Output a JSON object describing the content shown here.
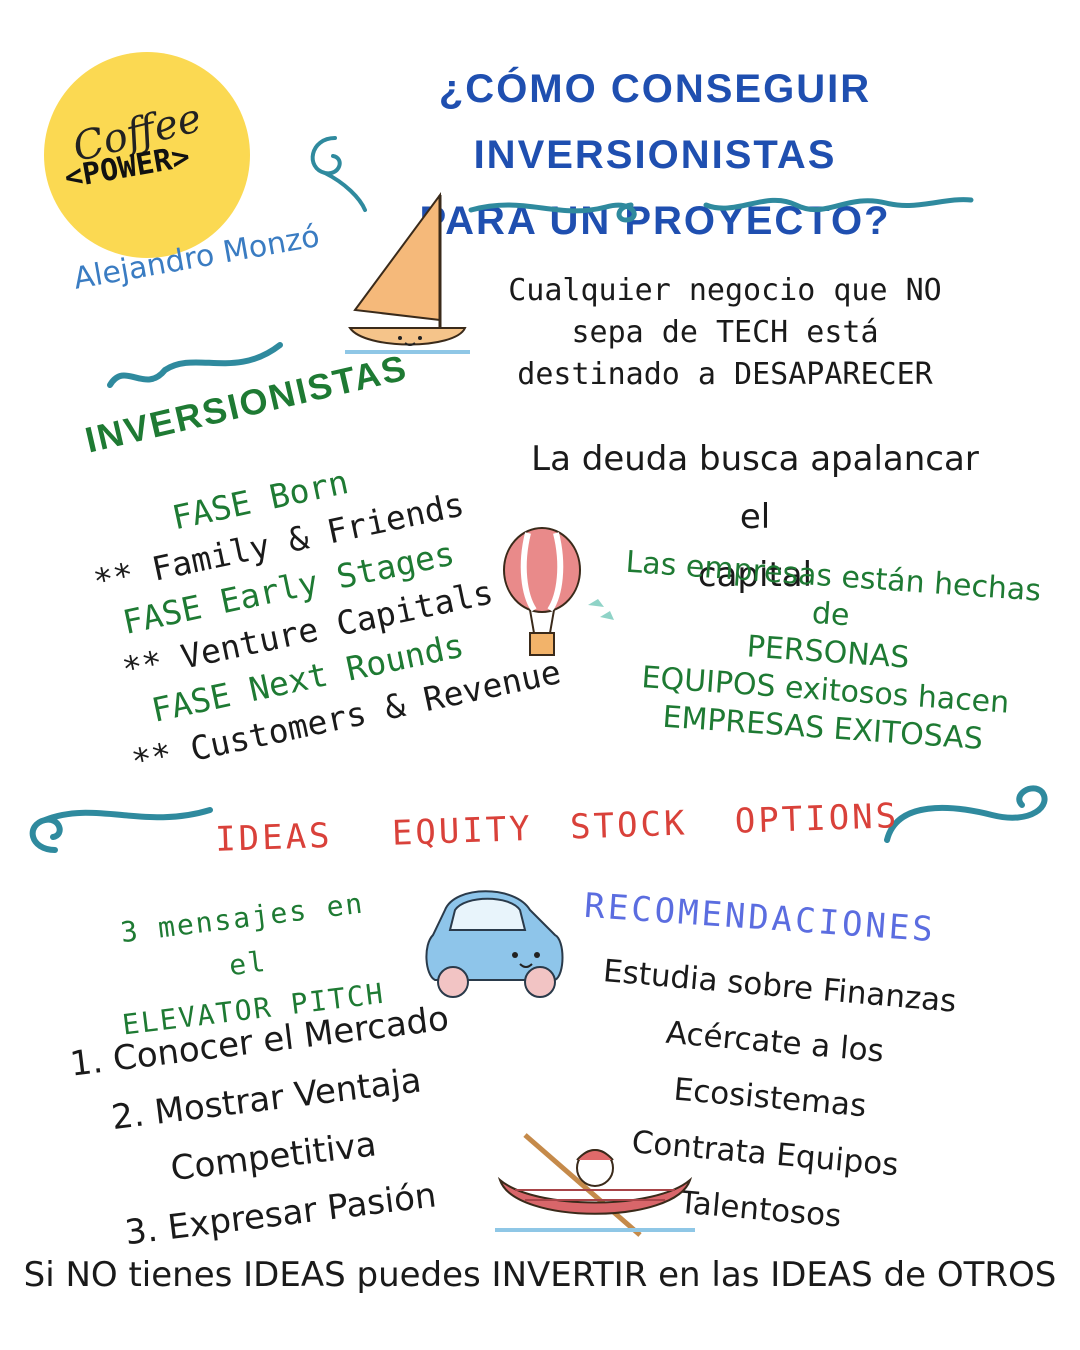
{
  "logo": {
    "line1": "Coffee",
    "line2": "<POWER>"
  },
  "title": {
    "line1": "¿CÓMO CONSEGUIR INVERSIONISTAS",
    "line2": "PARA UN PROYECTO?"
  },
  "author": "Alejandro Monzó",
  "tech_statement": {
    "line1": "Cualquier negocio que NO",
    "line2": "sepa de TECH está",
    "line3": "destinado a DESAPARECER"
  },
  "investors": {
    "heading": "INVERSIONISTAS",
    "phases": [
      {
        "phase": "FASE Born",
        "detail": "** Family & Friends"
      },
      {
        "phase": "FASE Early Stages",
        "detail": "** Venture Capitals"
      },
      {
        "phase": "FASE Next Rounds",
        "detail": "** Customers & Revenue"
      }
    ]
  },
  "debt": {
    "line1": "La deuda busca apalancar el",
    "line2": "capital"
  },
  "companies": {
    "line1": "Las empresas están hechas de",
    "line2": "PERSONAS",
    "line3": "EQUIPOS exitosos hacen",
    "line4": "EMPRESAS EXITOSAS"
  },
  "ideas_banner": {
    "word1": "IDEAS",
    "word2": "EQUITY",
    "word3": "STOCK",
    "word4": "OPTIONS"
  },
  "pitch": {
    "line1": "3 mensajes en el",
    "line2": "ELEVATOR PITCH"
  },
  "steps": [
    "1. Conocer el Mercado",
    "2. Mostrar Ventaja Competitiva",
    "3. Expresar Pasión"
  ],
  "recommendations": {
    "heading": "RECOMENDACIONES",
    "items": [
      "Estudia sobre Finanzas",
      "Acércate a los Ecosistemas",
      "Contrata Equipos Talentosos"
    ]
  },
  "footer": "Si NO tienes IDEAS puedes INVERTIR en las IDEAS de OTROS",
  "colors": {
    "title_blue": "#1f4fb0",
    "green": "#1e7a33",
    "red": "#d9413a",
    "purple": "#5b6de0",
    "swirl_teal": "#2f8a9e",
    "logo_yellow": "#fbd952"
  },
  "icons": [
    "sailboat-illustration",
    "hot-air-balloon-illustration",
    "car-illustration",
    "canoe-illustration",
    "swirl-decoration"
  ]
}
